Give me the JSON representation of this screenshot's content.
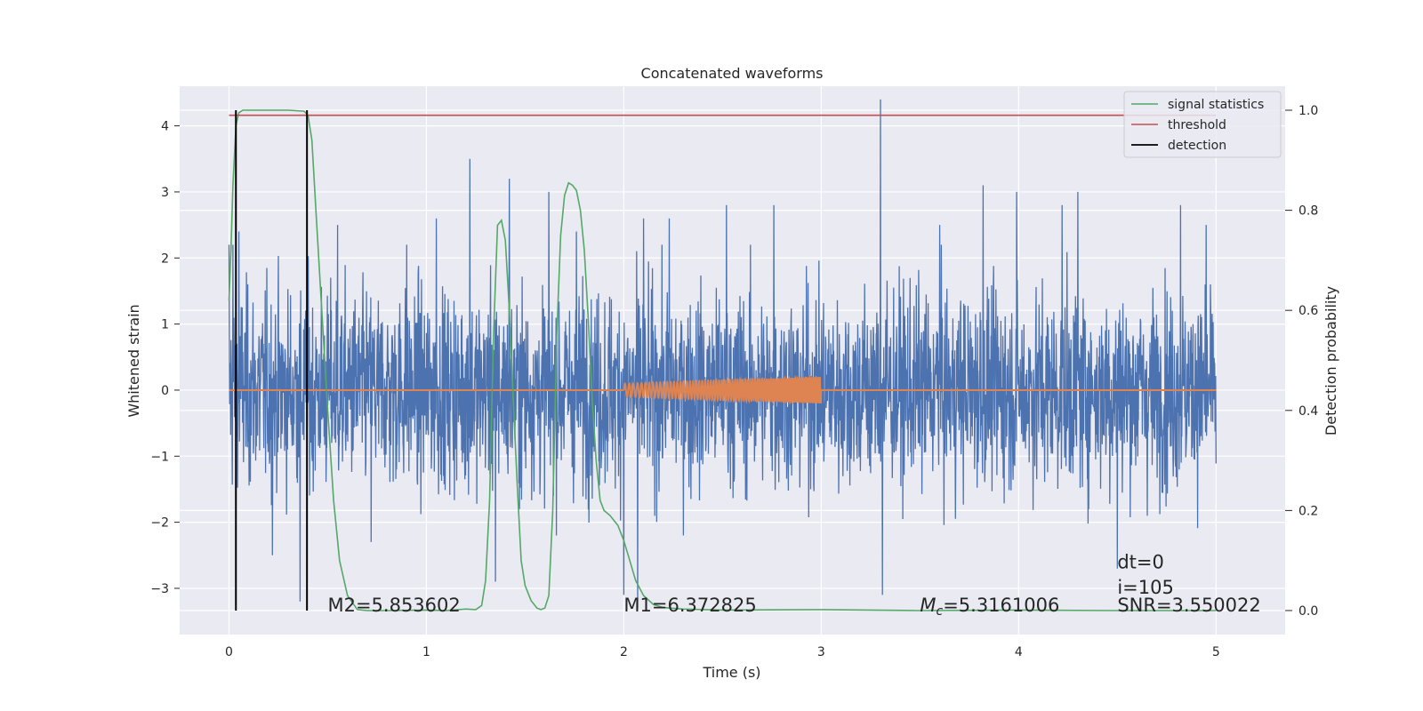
{
  "chart_data": {
    "type": "line",
    "title": "Concatenated waveforms",
    "xlabel": "Time (s)",
    "ylabel": "Whitened strain",
    "ylabel_right": "Detection probability",
    "xlim": [
      -0.25,
      5.35
    ],
    "ylim": [
      -3.7,
      4.6
    ],
    "ylim_right": [
      -0.048,
      1.048
    ],
    "x_ticks": [
      0,
      1,
      2,
      3,
      4,
      5
    ],
    "x_tick_labels": [
      "0",
      "1",
      "2",
      "3",
      "4",
      "5"
    ],
    "y_ticks": [
      -3,
      -2,
      -1,
      0,
      1,
      2,
      3,
      4
    ],
    "y_tick_labels": [
      "−3",
      "−2",
      "−1",
      "0",
      "1",
      "2",
      "3",
      "4"
    ],
    "y_right_ticks": [
      0.0,
      0.2,
      0.4,
      0.6,
      0.8,
      1.0
    ],
    "y_right_tick_labels": [
      "0.0",
      "0.2",
      "0.4",
      "0.6",
      "0.8",
      "1.0"
    ],
    "grid": true,
    "legend_position": "top-right",
    "series": [
      {
        "name": "",
        "kind": "noise",
        "axis": "left",
        "color": "#4c72b0",
        "x_range": [
          0,
          5
        ],
        "typical_amplitude": 1.3,
        "spikes": [
          [
            0.02,
            2.2
          ],
          [
            0.05,
            2.4
          ],
          [
            0.22,
            -2.5
          ],
          [
            0.36,
            -3.2
          ],
          [
            0.55,
            2.5
          ],
          [
            0.72,
            -2.3
          ],
          [
            0.9,
            2.2
          ],
          [
            1.05,
            2.6
          ],
          [
            1.22,
            3.5
          ],
          [
            1.35,
            -2.9
          ],
          [
            1.42,
            3.2
          ],
          [
            1.62,
            3.0
          ],
          [
            1.76,
            2.4
          ],
          [
            2.0,
            -3.1
          ],
          [
            2.07,
            -3.3
          ],
          [
            2.1,
            2.6
          ],
          [
            2.23,
            2.6
          ],
          [
            2.52,
            2.8
          ],
          [
            2.76,
            2.8
          ],
          [
            3.3,
            4.4
          ],
          [
            3.31,
            -3.1
          ],
          [
            3.6,
            2.5
          ],
          [
            3.82,
            3.1
          ],
          [
            3.99,
            3.0
          ],
          [
            4.22,
            2.8
          ],
          [
            4.3,
            3.0
          ],
          [
            4.5,
            -2.7
          ],
          [
            4.82,
            2.8
          ],
          [
            4.95,
            2.5
          ]
        ]
      },
      {
        "name": "",
        "kind": "chirp",
        "axis": "left",
        "color": "#dd8452",
        "x_range": [
          0,
          5
        ],
        "chirp_start": 2.0,
        "chirp_end": 3.0,
        "amplitude_start": 0.1,
        "amplitude_end": 0.2
      },
      {
        "name": "signal statistics",
        "kind": "line",
        "axis": "right",
        "color": "#55a868",
        "x": [
          0.0,
          0.01,
          0.02,
          0.035,
          0.05,
          0.07,
          0.1,
          0.2,
          0.3,
          0.38,
          0.4,
          0.42,
          0.44,
          0.47,
          0.5,
          0.53,
          0.56,
          0.6,
          0.65,
          0.7,
          0.8,
          1.0,
          1.1,
          1.2,
          1.25,
          1.28,
          1.3,
          1.32,
          1.34,
          1.36,
          1.38,
          1.4,
          1.42,
          1.44,
          1.46,
          1.48,
          1.5,
          1.53,
          1.56,
          1.58,
          1.6,
          1.62,
          1.64,
          1.66,
          1.68,
          1.7,
          1.72,
          1.74,
          1.76,
          1.78,
          1.8,
          1.82,
          1.84,
          1.86,
          1.88,
          1.9,
          1.93,
          1.97,
          2.0,
          2.03,
          2.06,
          2.1,
          2.15,
          2.2,
          2.3,
          2.5,
          3.0,
          3.5,
          4.0,
          4.5,
          5.0
        ],
        "y": [
          0.62,
          0.72,
          0.85,
          0.97,
          0.995,
          1.0,
          1.0,
          1.0,
          1.0,
          0.998,
          0.99,
          0.94,
          0.8,
          0.6,
          0.4,
          0.22,
          0.1,
          0.03,
          0.002,
          0.0,
          0.0,
          0.001,
          0.0,
          0.003,
          0.002,
          0.01,
          0.06,
          0.22,
          0.55,
          0.77,
          0.78,
          0.74,
          0.6,
          0.42,
          0.25,
          0.1,
          0.05,
          0.02,
          0.005,
          0.002,
          0.005,
          0.03,
          0.2,
          0.55,
          0.75,
          0.83,
          0.855,
          0.85,
          0.84,
          0.8,
          0.72,
          0.58,
          0.42,
          0.3,
          0.22,
          0.2,
          0.19,
          0.17,
          0.14,
          0.1,
          0.06,
          0.03,
          0.012,
          0.006,
          0.003,
          0.001,
          0.002,
          0.0,
          0.001,
          0.0,
          0.0
        ]
      },
      {
        "name": "threshold",
        "kind": "hline",
        "axis": "right",
        "color": "#c44e52",
        "x": [
          0,
          5
        ],
        "y": 0.99
      },
      {
        "name": "detection",
        "kind": "vlines",
        "axis": "right",
        "color": "#000000",
        "x": [
          0.035,
          0.395
        ],
        "y_range": [
          0,
          1
        ]
      }
    ],
    "annotations": [
      {
        "text": "M2=5.853602",
        "x": 0.5,
        "y": -3.35
      },
      {
        "text": "M1=6.372825",
        "x": 2.0,
        "y": -3.35
      },
      {
        "text_main": "M",
        "text_sub": "c",
        "text_rest": "=5.3161006",
        "x": 3.5,
        "y": -3.35
      },
      {
        "text": "dt=0",
        "x": 4.5,
        "y": -2.7
      },
      {
        "text": "i=105",
        "x": 4.5,
        "y": -3.08
      },
      {
        "text": "SNR=3.550022",
        "x": 4.5,
        "y": -3.35
      }
    ]
  }
}
